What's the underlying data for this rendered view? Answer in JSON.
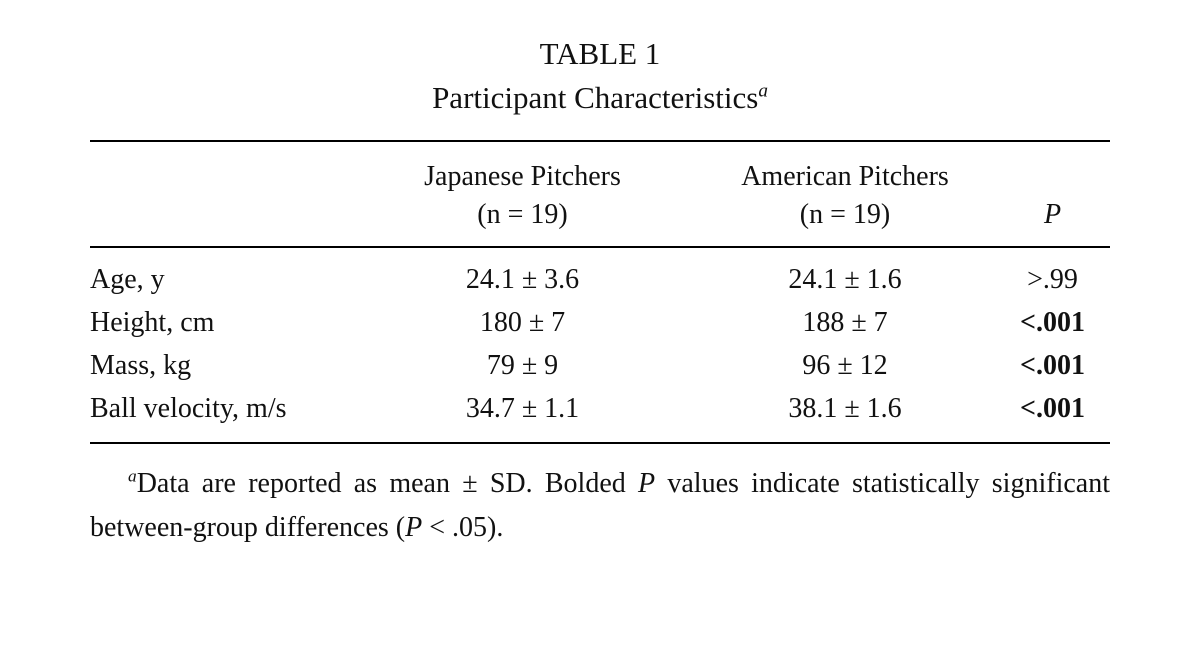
{
  "title": {
    "line1": "TABLE 1",
    "line2": "Participant Characteristics",
    "superscript": "a"
  },
  "table": {
    "columns": {
      "group1_line1": "Japanese Pitchers",
      "group1_line2": "(n = 19)",
      "group2_line1": "American Pitchers",
      "group2_line2": "(n = 19)",
      "p_label": "P"
    },
    "rows": [
      {
        "label": "Age, y",
        "japanese": "24.1 ± 3.6",
        "american": "24.1 ± 1.6",
        "p": ">.99",
        "p_bold": false
      },
      {
        "label": "Height, cm",
        "japanese": "180 ± 7",
        "american": "188 ± 7",
        "p": "<.001",
        "p_bold": true
      },
      {
        "label": "Mass, kg",
        "japanese": "79 ± 9",
        "american": "96 ± 12",
        "p": "<.001",
        "p_bold": true
      },
      {
        "label": "Ball velocity, m/s",
        "japanese": "34.7 ± 1.1",
        "american": "38.1 ± 1.6",
        "p": "<.001",
        "p_bold": true
      }
    ]
  },
  "footnote": {
    "superscript": "a",
    "text1": "Data are reported as mean ± SD. Bolded ",
    "italic1": "P",
    "text2": " values indicate statistically significant between-group differences (",
    "italic2": "P",
    "text3": " < .05)."
  }
}
